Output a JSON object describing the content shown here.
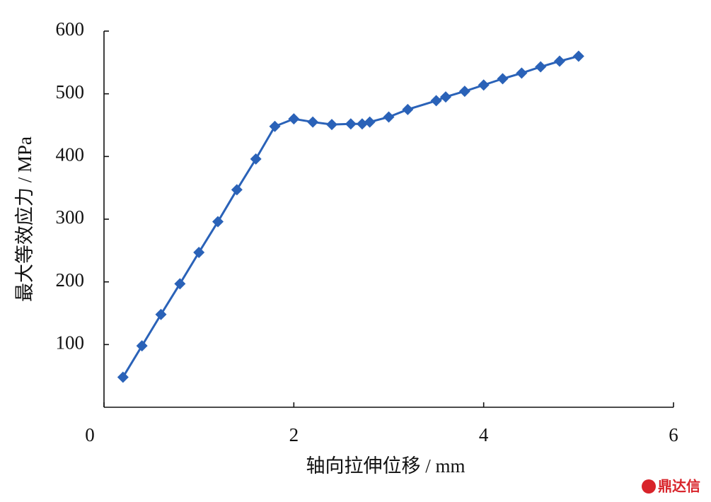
{
  "chart_data": {
    "type": "line",
    "xlabel": "轴向拉伸位移 / mm",
    "ylabel": "最大等效应力 / MPa",
    "x": [
      0.2,
      0.4,
      0.6,
      0.8,
      1.0,
      1.2,
      1.4,
      1.6,
      1.8,
      2.0,
      2.2,
      2.4,
      2.6,
      2.72,
      2.8,
      3.0,
      3.2,
      3.5,
      3.6,
      3.8,
      4.0,
      4.2,
      4.4,
      4.6,
      4.8,
      5.0
    ],
    "values": [
      48,
      98,
      148,
      197,
      247,
      296,
      347,
      396,
      448,
      460,
      455,
      451,
      452,
      452,
      455,
      463,
      475,
      489,
      495,
      504,
      514,
      524,
      533,
      543,
      552,
      560
    ],
    "color": "#2a62b8",
    "xlim": [
      0,
      6
    ],
    "xticks": [
      0,
      2,
      4,
      6
    ],
    "ylim": [
      0,
      600
    ],
    "yticks": [
      100,
      200,
      300,
      400,
      500,
      600
    ],
    "grid": false,
    "watermark": "鼎达信"
  }
}
